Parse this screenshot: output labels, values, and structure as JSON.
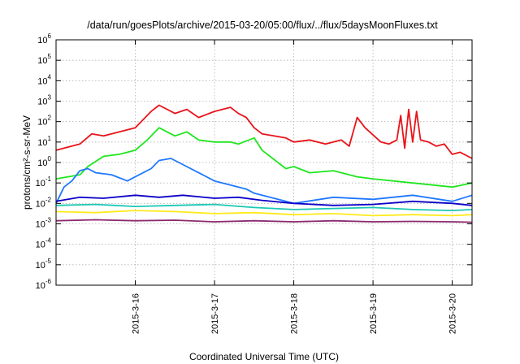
{
  "chart_data": {
    "type": "line",
    "title": "/data/run/goesPlots/archive/2015-03-20/05:00/flux/../flux/5daysMoonFluxes.txt",
    "xlabel": "Coordinated Universal Time (UTC)",
    "ylabel": "protons/cm²-s-sr-MeV",
    "y_scale": "log",
    "ylim": [
      1e-06,
      1000000.0
    ],
    "y_tick_values": [
      -6,
      -5,
      -4,
      -3,
      -2,
      -1,
      0,
      1,
      2,
      3,
      4,
      5,
      6
    ],
    "xlim": [
      0,
      5.25
    ],
    "x_ticks": [
      {
        "value": 1,
        "label": "2015-3-16"
      },
      {
        "value": 2,
        "label": "2015-3-17"
      },
      {
        "value": 3,
        "label": "2015-3-18"
      },
      {
        "value": 4,
        "label": "2015-3-19"
      },
      {
        "value": 5,
        "label": "2015-3-20"
      }
    ],
    "grid": true,
    "colors": {
      "red": "#e8141a",
      "green": "#1fe61f",
      "lightblue": "#1f78ff",
      "darkblue": "#0c00c8",
      "teal": "#1cc8b4",
      "yellow": "#ffea1a",
      "purple": "#8c2a6e"
    },
    "series": [
      {
        "color": "#e8141a",
        "x": [
          0,
          0.3,
          0.45,
          0.6,
          0.8,
          1.0,
          1.2,
          1.3,
          1.5,
          1.65,
          1.8,
          2.0,
          2.2,
          2.3,
          2.4,
          2.5,
          2.6,
          2.75,
          2.9,
          3.0,
          3.2,
          3.4,
          3.6,
          3.7,
          3.8,
          3.9,
          4.1,
          4.2,
          4.3,
          4.35,
          4.4,
          4.45,
          4.5,
          4.55,
          4.6,
          4.7,
          4.8,
          4.9,
          5.0,
          5.1,
          5.25
        ],
        "log_y": [
          0.6,
          0.9,
          1.4,
          1.3,
          1.5,
          1.7,
          2.5,
          2.8,
          2.4,
          2.6,
          2.2,
          2.5,
          2.7,
          2.4,
          2.2,
          1.7,
          1.4,
          1.3,
          1.2,
          1.0,
          1.1,
          0.9,
          1.1,
          0.8,
          2.2,
          1.7,
          1.0,
          0.9,
          1.1,
          2.3,
          0.7,
          2.6,
          1.0,
          2.5,
          1.1,
          1.0,
          0.8,
          0.9,
          0.4,
          0.5,
          0.2
        ]
      },
      {
        "color": "#1fe61f",
        "x": [
          0,
          0.3,
          0.4,
          0.6,
          0.8,
          1.0,
          1.15,
          1.3,
          1.5,
          1.65,
          1.8,
          2.0,
          2.2,
          2.3,
          2.5,
          2.6,
          2.9,
          3.0,
          3.2,
          3.5,
          3.8,
          4.0,
          4.5,
          5.0,
          5.25
        ],
        "log_y": [
          -0.8,
          -0.6,
          -0.2,
          0.3,
          0.4,
          0.6,
          1.1,
          1.7,
          1.3,
          1.5,
          1.1,
          1.0,
          1.0,
          0.9,
          1.2,
          0.6,
          -0.3,
          -0.2,
          -0.5,
          -0.4,
          -0.7,
          -0.8,
          -1.0,
          -1.2,
          -1.0
        ]
      },
      {
        "color": "#1f78ff",
        "x": [
          0,
          0.1,
          0.2,
          0.3,
          0.4,
          0.5,
          0.7,
          0.9,
          1.0,
          1.2,
          1.3,
          1.45,
          1.6,
          1.8,
          2.0,
          2.2,
          2.4,
          2.5,
          2.7,
          2.9,
          3.0,
          3.5,
          4.0,
          4.5,
          5.0,
          5.25
        ],
        "log_y": [
          -2.0,
          -1.2,
          -0.9,
          -0.4,
          -0.3,
          -0.5,
          -0.6,
          -0.9,
          -0.7,
          -0.3,
          0.1,
          0.2,
          -0.1,
          -0.5,
          -0.9,
          -1.1,
          -1.3,
          -1.5,
          -1.7,
          -1.9,
          -2.0,
          -1.7,
          -1.8,
          -1.6,
          -1.9,
          -1.6
        ]
      },
      {
        "color": "#0c00c8",
        "x": [
          0,
          0.3,
          0.6,
          1.0,
          1.3,
          1.6,
          2.0,
          2.3,
          2.6,
          3.0,
          3.5,
          4.0,
          4.5,
          5.0,
          5.25
        ],
        "log_y": [
          -1.9,
          -1.7,
          -1.75,
          -1.6,
          -1.7,
          -1.6,
          -1.75,
          -1.7,
          -1.85,
          -2.0,
          -2.1,
          -2.05,
          -1.9,
          -2.0,
          -2.1
        ]
      },
      {
        "color": "#1cc8b4",
        "x": [
          0,
          0.5,
          1.0,
          1.5,
          2.0,
          2.5,
          3.0,
          3.5,
          4.0,
          4.5,
          5.0,
          5.25
        ],
        "log_y": [
          -2.1,
          -2.05,
          -2.15,
          -2.1,
          -2.05,
          -2.2,
          -2.3,
          -2.25,
          -2.2,
          -2.3,
          -2.35,
          -2.3
        ]
      },
      {
        "color": "#ffea1a",
        "x": [
          0,
          0.5,
          1.0,
          1.5,
          2.0,
          2.5,
          3.0,
          3.5,
          4.0,
          4.5,
          5.0,
          5.25
        ],
        "log_y": [
          -2.4,
          -2.45,
          -2.35,
          -2.4,
          -2.5,
          -2.45,
          -2.55,
          -2.5,
          -2.6,
          -2.55,
          -2.6,
          -2.55
        ]
      },
      {
        "color": "#8c2a6e",
        "x": [
          0,
          0.5,
          1.0,
          1.5,
          2.0,
          2.5,
          3.0,
          3.5,
          4.0,
          4.5,
          5.0,
          5.25
        ],
        "log_y": [
          -2.85,
          -2.8,
          -2.85,
          -2.82,
          -2.9,
          -2.85,
          -2.9,
          -2.85,
          -2.9,
          -2.88,
          -2.9,
          -2.92
        ]
      }
    ]
  }
}
